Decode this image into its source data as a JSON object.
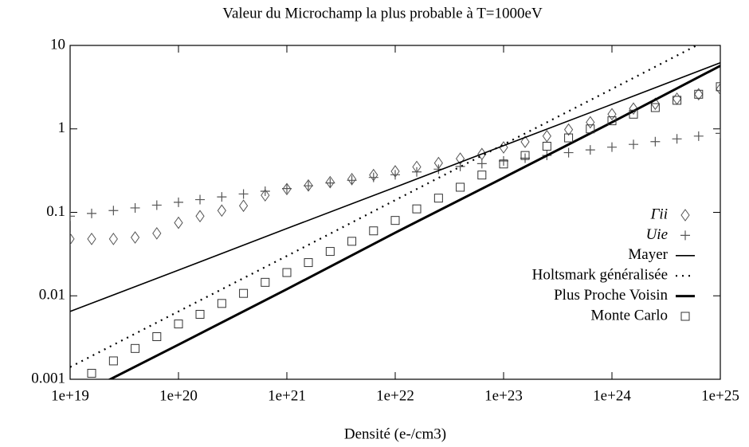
{
  "chart_data": {
    "type": "line",
    "title": "Valeur du Microchamp la plus probable à T=1000eV",
    "xlabel": "Densité (e-/cm3)",
    "xscale": "log",
    "yscale": "log",
    "xlim": [
      1e+19,
      1e+25
    ],
    "ylim": [
      0.001,
      10
    ],
    "xticks": [
      {
        "value": 1e+19,
        "label": "1e+19"
      },
      {
        "value": 1e+20,
        "label": "1e+20"
      },
      {
        "value": 1e+21,
        "label": "1e+21"
      },
      {
        "value": 1e+22,
        "label": "1e+22"
      },
      {
        "value": 1e+23,
        "label": "1e+23"
      },
      {
        "value": 1e+24,
        "label": "1e+24"
      },
      {
        "value": 1e+25,
        "label": "1e+25"
      }
    ],
    "yticks": [
      0.001,
      0.01,
      0.1,
      1,
      10
    ],
    "legend": "right",
    "series": [
      {
        "name": "Γii",
        "style": "marker",
        "marker": "diamond",
        "color": "#555555",
        "x": [
          1e+19,
          1.58e+19,
          2.51e+19,
          3.98e+19,
          6.31e+19,
          1e+20,
          1.58e+20,
          2.51e+20,
          3.98e+20,
          6.31e+20,
          1e+21,
          1.58e+21,
          2.51e+21,
          3.98e+21,
          6.31e+21,
          1e+22,
          1.58e+22,
          2.51e+22,
          3.98e+22,
          6.31e+22,
          1e+23,
          1.58e+23,
          2.51e+23,
          3.98e+23,
          6.31e+23,
          1e+24,
          1.58e+24,
          2.51e+24,
          3.98e+24,
          6.31e+24,
          1e+25
        ],
        "values": [
          0.048,
          0.048,
          0.048,
          0.05,
          0.056,
          0.075,
          0.09,
          0.105,
          0.12,
          0.16,
          0.19,
          0.21,
          0.23,
          0.25,
          0.28,
          0.31,
          0.35,
          0.39,
          0.44,
          0.5,
          0.6,
          0.7,
          0.82,
          0.98,
          1.2,
          1.5,
          1.75,
          2.0,
          2.3,
          2.6,
          3.0
        ]
      },
      {
        "name": "Uie",
        "style": "marker",
        "marker": "plus",
        "color": "#555555",
        "x": [
          1e+19,
          1.58e+19,
          2.51e+19,
          3.98e+19,
          6.31e+19,
          1e+20,
          1.58e+20,
          2.51e+20,
          3.98e+20,
          6.31e+20,
          1e+21,
          1.58e+21,
          2.51e+21,
          3.98e+21,
          6.31e+21,
          1e+22,
          1.58e+22,
          2.51e+22,
          3.98e+22,
          6.31e+22,
          1e+23,
          1.58e+23,
          2.51e+23,
          3.98e+23,
          6.31e+23,
          1e+24,
          1.58e+24,
          2.51e+24,
          3.98e+24,
          6.31e+24,
          1e+25
        ],
        "values": [
          0.09,
          0.097,
          0.105,
          0.113,
          0.122,
          0.132,
          0.142,
          0.153,
          0.166,
          0.179,
          0.193,
          0.208,
          0.225,
          0.242,
          0.262,
          0.282,
          0.305,
          0.329,
          0.355,
          0.383,
          0.413,
          0.446,
          0.481,
          0.519,
          0.56,
          0.604,
          0.652,
          0.703,
          0.759,
          0.819,
          0.884
        ]
      },
      {
        "name": "Mayer",
        "style": "line",
        "width": 1.6,
        "color": "#000000",
        "x": [
          1e+19,
          1e+20,
          1e+21,
          1e+22,
          1e+23,
          1e+24,
          1e+25
        ],
        "values": [
          0.0065,
          0.0203,
          0.064,
          0.2,
          0.63,
          1.97,
          6.2
        ]
      },
      {
        "name": "Holtsmark généralisée",
        "style": "line",
        "dash": "dotted",
        "width": 2.2,
        "color": "#000000",
        "x": [
          1e+19,
          1e+20,
          1e+21,
          1e+22,
          1e+23,
          1e+24,
          1e+25
        ],
        "values": [
          0.0014,
          0.0065,
          0.03,
          0.14,
          0.65,
          3.0,
          14
        ]
      },
      {
        "name": "Plus Proche Voisin",
        "style": "line",
        "width": 3,
        "color": "#000000",
        "x": [
          1e+19,
          1e+20,
          1e+21,
          1e+22,
          1e+23,
          1e+24,
          1e+25
        ],
        "values": [
          0.00057,
          0.0026,
          0.012,
          0.057,
          0.26,
          1.2,
          5.7
        ]
      },
      {
        "name": "Monte Carlo",
        "style": "marker",
        "marker": "square",
        "color": "#333333",
        "x": [
          1e+19,
          1.58e+19,
          2.51e+19,
          3.98e+19,
          6.31e+19,
          1e+20,
          1.58e+20,
          2.51e+20,
          3.98e+20,
          6.31e+20,
          1e+21,
          1.58e+21,
          2.51e+21,
          3.98e+21,
          6.31e+21,
          1e+22,
          1.58e+22,
          2.51e+22,
          3.98e+22,
          6.31e+22,
          1e+23,
          1.58e+23,
          2.51e+23,
          3.98e+23,
          6.31e+23,
          1e+24,
          1.58e+24,
          2.51e+24,
          3.98e+24,
          6.31e+24,
          1e+25
        ],
        "values": [
          null,
          0.00118,
          0.00166,
          0.00234,
          0.00324,
          0.0046,
          0.006,
          0.0081,
          0.0107,
          0.0145,
          0.019,
          0.025,
          0.034,
          0.045,
          0.06,
          0.08,
          0.11,
          0.148,
          0.2,
          0.28,
          0.38,
          0.48,
          0.62,
          0.78,
          1.0,
          1.25,
          1.5,
          1.8,
          2.2,
          2.6,
          3.2
        ]
      }
    ]
  }
}
